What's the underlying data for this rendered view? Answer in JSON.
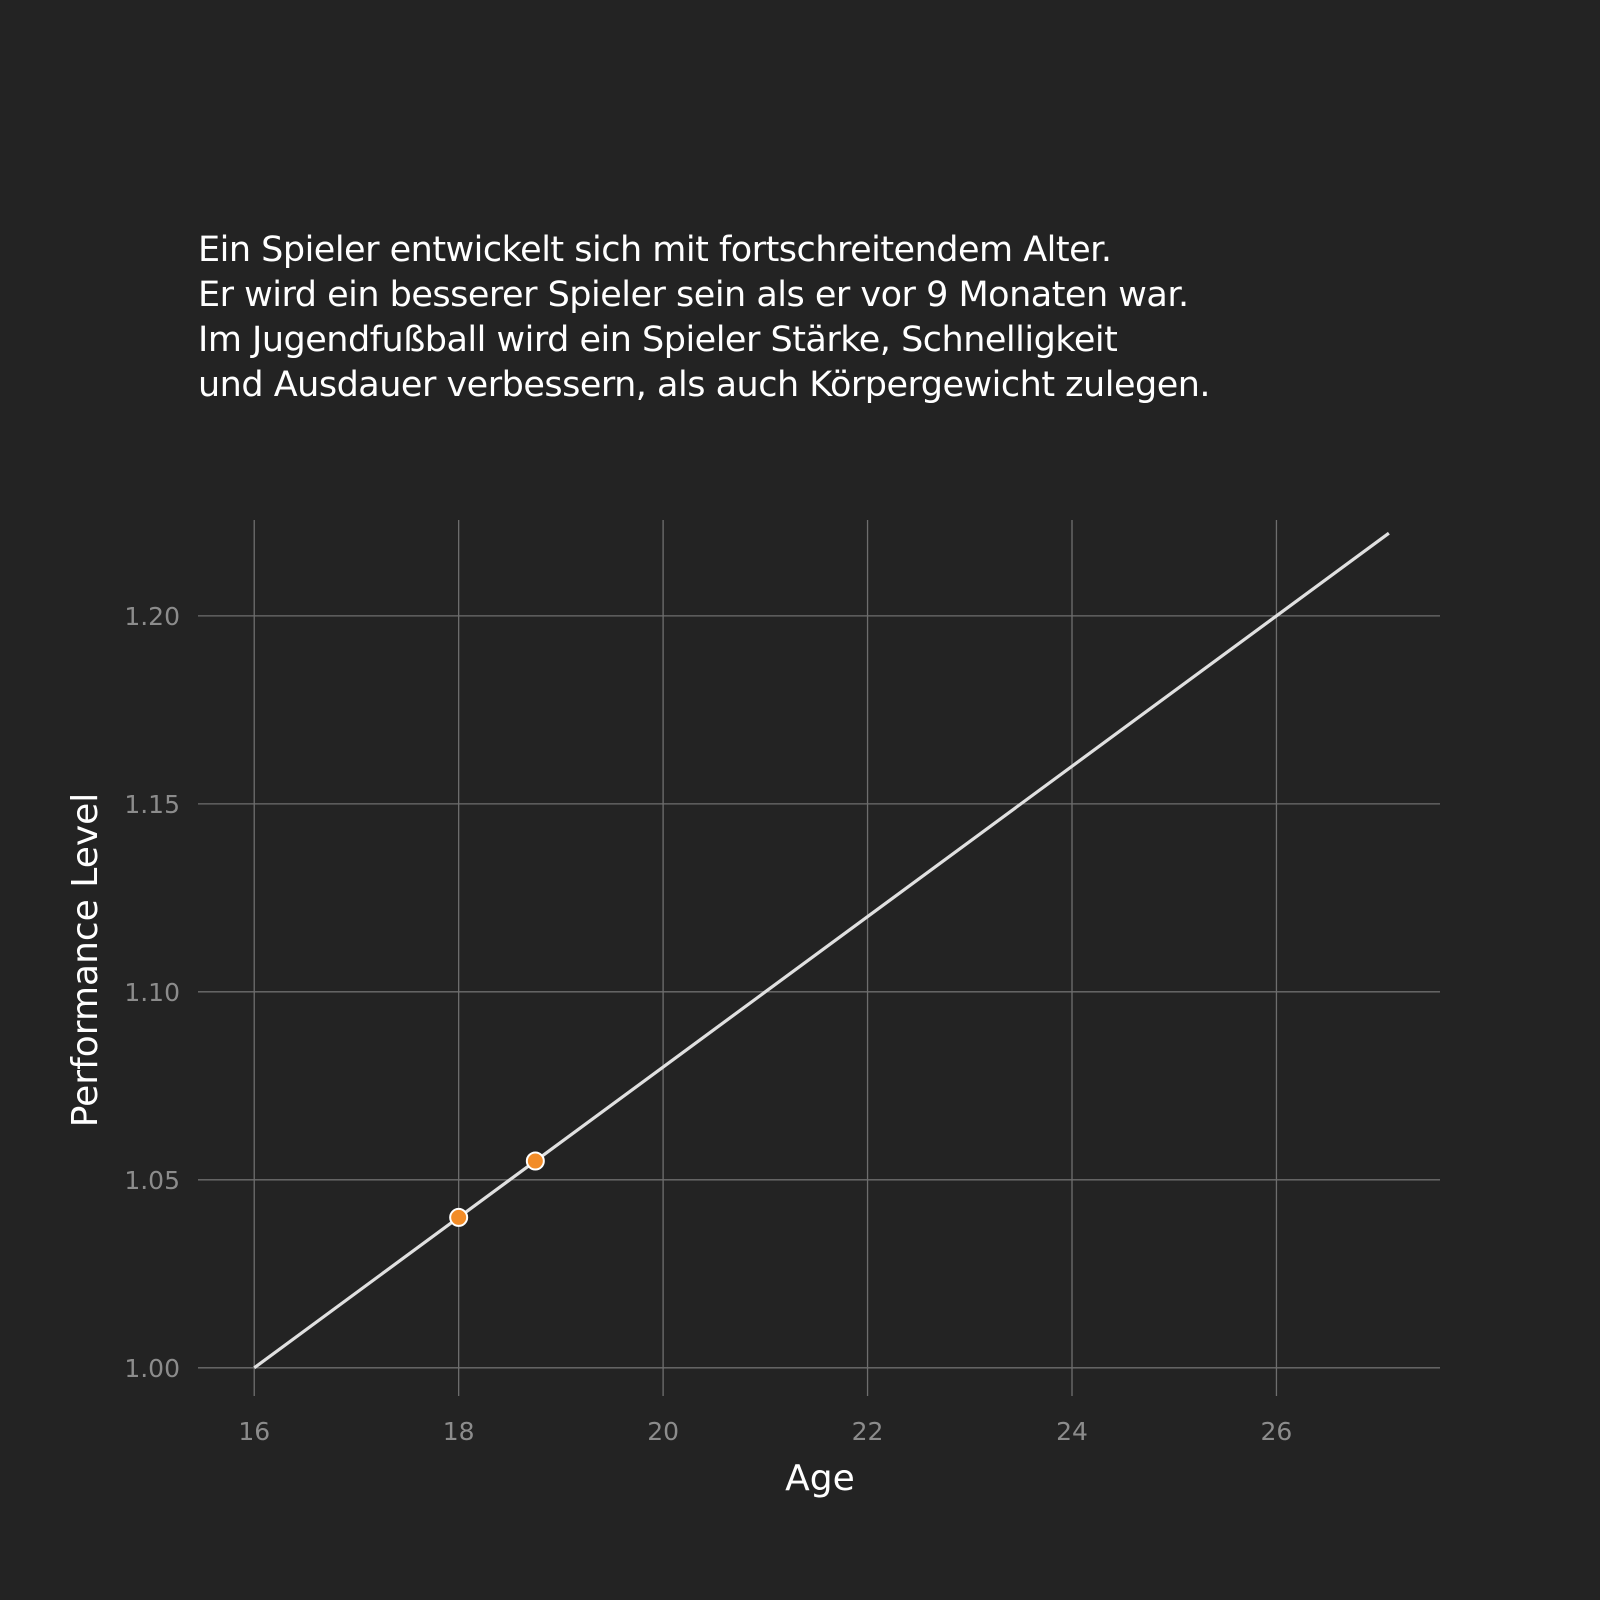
{
  "caption": {
    "lines": [
      "Ein Spieler entwickelt sich mit fortschreitendem Alter.",
      "Er wird ein besserer Spieler sein als er vor 9 Monaten war.",
      "Im Jugendfußball wird ein Spieler Stärke, Schnelligkeit",
      "und Ausdauer verbessern, als auch Körpergewicht zulegen."
    ]
  },
  "colors": {
    "background": "#232323",
    "line": "#e0e0e0",
    "marker": "#f28c28",
    "grid": "#6e6e6e"
  },
  "chart_data": {
    "type": "line",
    "xlabel": "Age",
    "ylabel": "Performance Level",
    "xlim": [
      15.45,
      27.6
    ],
    "ylim": [
      0.9925,
      1.2255
    ],
    "xticks": [
      16,
      18,
      20,
      22,
      24,
      26
    ],
    "xtick_labels": [
      "16",
      "18",
      "20",
      "22",
      "24",
      "26"
    ],
    "yticks": [
      1.0,
      1.05,
      1.1,
      1.15,
      1.2
    ],
    "ytick_labels": [
      "1.00",
      "1.05",
      "1.10",
      "1.15",
      "1.20"
    ],
    "grid": true,
    "series": [
      {
        "x": [
          16,
          27.1
        ],
        "y": [
          1.0,
          1.222
        ]
      }
    ],
    "highlight_points": [
      {
        "x": 18,
        "y": 1.04
      },
      {
        "x": 18.75,
        "y": 1.055
      }
    ]
  }
}
